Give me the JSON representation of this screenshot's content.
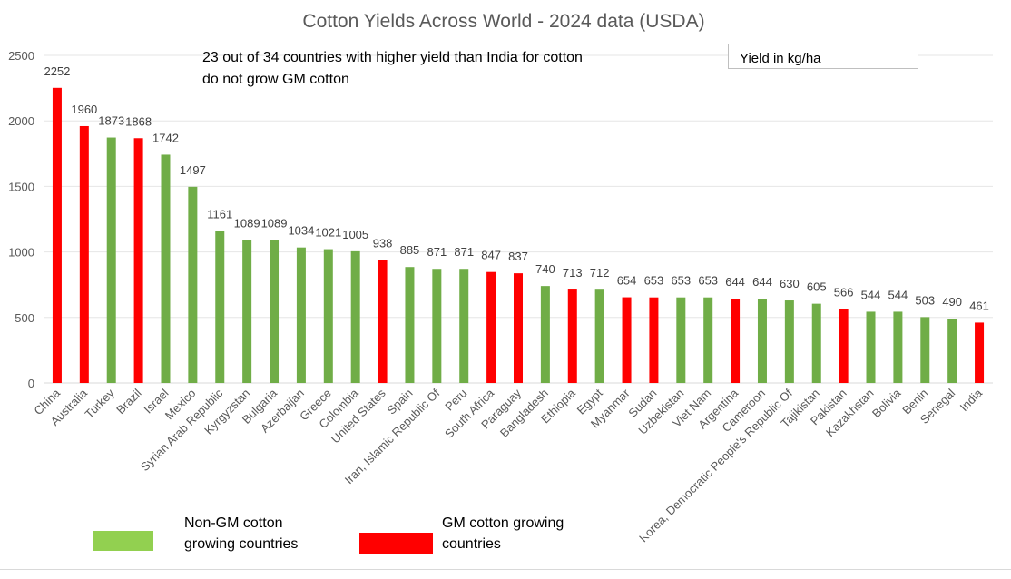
{
  "chart_data": {
    "type": "bar",
    "title": "Cotton Yields Across World - 2024 data (USDA)",
    "annotation": "23 out of 34 countries with higher yield than India for cotton do not grow GM cotton",
    "unit_label": "Yield in kg/ha",
    "ylim": [
      0,
      2500
    ],
    "yticks": [
      0,
      500,
      1000,
      1500,
      2000,
      2500
    ],
    "grid": true,
    "categories": [
      "China",
      "Australia",
      "Turkey",
      "Brazil",
      "Israel",
      "Mexico",
      "Syrian Arab Republic",
      "Kyrgyzstan",
      "Bulgaria",
      "Azerbaijan",
      "Greece",
      "Colombia",
      "United States",
      "Spain",
      "Iran, Islamic Republic Of",
      "Peru",
      "South Africa",
      "Paraguay",
      "Bangladesh",
      "Ethiopia",
      "Egypt",
      "Myanmar",
      "Sudan",
      "Uzbekistan",
      "Viet Nam",
      "Argentina",
      "Cameroon",
      "Korea, Democratic People's Republic Of",
      "Tajikistan",
      "Pakistan",
      "Kazakhstan",
      "Bolivia",
      "Benin",
      "Senegal",
      "India"
    ],
    "values": [
      2252,
      1960,
      1873,
      1868,
      1742,
      1497,
      1161,
      1089,
      1089,
      1034,
      1021,
      1005,
      938,
      885,
      871,
      871,
      847,
      837,
      740,
      713,
      712,
      654,
      653,
      653,
      653,
      644,
      644,
      630,
      605,
      566,
      544,
      544,
      503,
      490,
      461
    ],
    "gm": [
      true,
      true,
      false,
      true,
      false,
      false,
      false,
      false,
      false,
      false,
      false,
      false,
      true,
      false,
      false,
      false,
      true,
      true,
      false,
      true,
      false,
      true,
      true,
      false,
      false,
      true,
      false,
      false,
      false,
      true,
      false,
      false,
      false,
      false,
      true
    ],
    "colors": {
      "non_gm": "#70ad47",
      "gm": "#ff0000",
      "legend_non_gm": "#92d050"
    },
    "legend": [
      {
        "label": "Non-GM cotton growing countries",
        "line1": "Non-GM cotton",
        "line2": "growing countries",
        "key": "non_gm"
      },
      {
        "label": "GM cotton growing countries",
        "line1": "GM cotton growing",
        "line2": "countries",
        "key": "gm"
      }
    ],
    "legend_placement": "bottom-left"
  }
}
